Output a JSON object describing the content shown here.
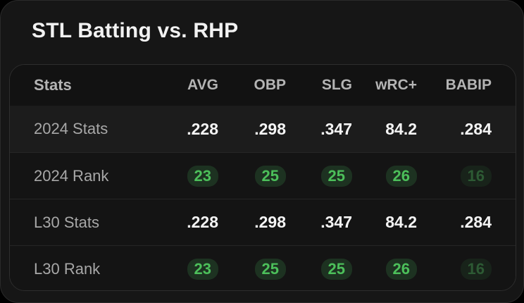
{
  "title": "STL Batting vs. RHP",
  "columns": [
    "Stats",
    "AVG",
    "OBP",
    "SLG",
    "wRC+",
    "BABIP"
  ],
  "rows": [
    {
      "label": "2024 Stats",
      "values": [
        ".228",
        ".298",
        ".347",
        "84.2",
        ".284"
      ]
    },
    {
      "label": "2024 Rank",
      "values": [
        "23",
        "25",
        "25",
        "26",
        "16"
      ]
    },
    {
      "label": "L30 Stats",
      "values": [
        ".228",
        ".298",
        ".347",
        "84.2",
        ".284"
      ]
    },
    {
      "label": "L30 Rank",
      "values": [
        "23",
        "25",
        "25",
        "26",
        "16"
      ]
    }
  ],
  "colors": {
    "background": "#161616",
    "rank_badge_bg": "#1d3221",
    "rank_badge_text": "#4cbf5a",
    "rank_badge_dim_text": "#2d5a34"
  }
}
